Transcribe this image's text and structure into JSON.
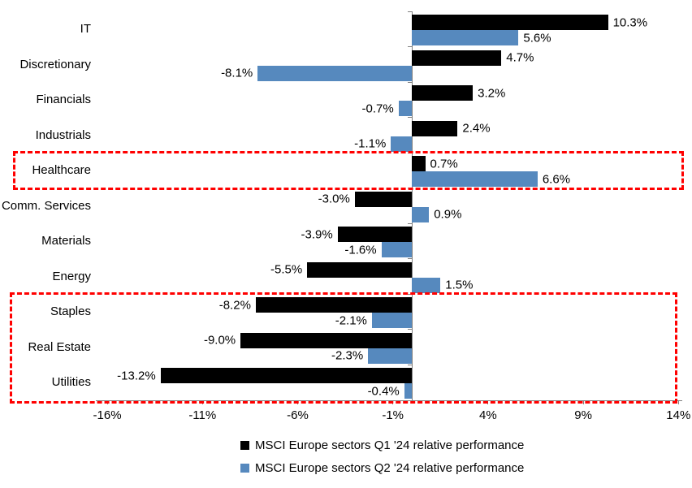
{
  "chart_data": {
    "type": "bar",
    "orientation": "horizontal",
    "title": "",
    "xlabel": "",
    "ylabel": "",
    "grid": false,
    "legend_position": "bottom",
    "categories": [
      "IT",
      "Discretionary",
      "Financials",
      "Industrials",
      "Healthcare",
      "Comm. Services",
      "Materials",
      "Energy",
      "Staples",
      "Real Estate",
      "Utilities"
    ],
    "series": [
      {
        "key": "q1",
        "name": "MSCI Europe sectors Q1 '24 relative performance",
        "color": "#000000",
        "values": [
          10.3,
          4.7,
          3.2,
          2.4,
          0.7,
          -3.0,
          -3.9,
          -5.5,
          -8.2,
          -9.0,
          -13.2
        ]
      },
      {
        "key": "q2",
        "name": "MSCI Europe sectors Q2 '24 relative performance",
        "color": "#5689BE",
        "values": [
          5.6,
          -8.1,
          -0.7,
          -1.1,
          6.6,
          0.9,
          -1.6,
          1.5,
          -2.1,
          -2.3,
          -0.4
        ]
      }
    ],
    "value_label_suffix": "%",
    "value_label_decimals": 1,
    "axis": {
      "min": -16.6,
      "max": 14.2,
      "ticks": [
        -16,
        -11,
        -6,
        -1,
        4,
        9,
        14
      ],
      "tick_labels": [
        "-16%",
        "-11%",
        "-6%",
        "-1%",
        "4%",
        "9%",
        "14%"
      ],
      "line_color": "#7f7f7f"
    },
    "highlight_boxes": [
      {
        "rows": [
          "Healthcare"
        ],
        "row_start": 4,
        "row_end": 4,
        "color": "#ff0000",
        "extend_to_axis": false
      },
      {
        "rows": [
          "Staples",
          "Real Estate",
          "Utilities"
        ],
        "row_start": 8,
        "row_end": 10,
        "color": "#ff0000",
        "extend_to_axis": true
      }
    ]
  },
  "legend": {
    "items": [
      {
        "label": "MSCI Europe sectors Q1 '24 relative performance",
        "color": "#000000"
      },
      {
        "label": "MSCI Europe sectors Q2 '24 relative performance",
        "color": "#5689BE"
      }
    ]
  }
}
